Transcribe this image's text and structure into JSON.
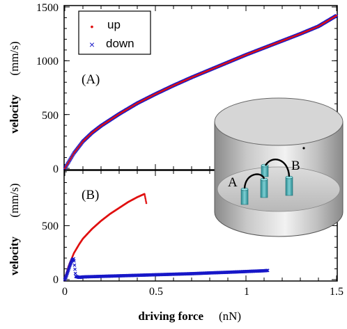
{
  "chart_data": [
    {
      "type": "scatter",
      "panel_label": "(A)",
      "ylabel": "velocity",
      "ylabel_unit": "(mm/s)",
      "xlim": [
        0,
        1.5
      ],
      "ylim": [
        0,
        1500
      ],
      "y_ticks": [
        "0",
        "500",
        "1000",
        "1500"
      ],
      "legend": {
        "position": "top-left",
        "entries": [
          {
            "marker": "•",
            "label": "up",
            "color": "#e01010"
          },
          {
            "marker": "×",
            "label": "down",
            "color": "#1818c8"
          }
        ]
      },
      "series": [
        {
          "name": "down",
          "color": "#1818c8",
          "x": [
            0,
            0.02,
            0.05,
            0.1,
            0.15,
            0.2,
            0.3,
            0.4,
            0.5,
            0.6,
            0.7,
            0.8,
            0.9,
            1.0,
            1.1,
            1.2,
            1.3,
            1.4,
            1.5
          ],
          "y": [
            0,
            55,
            140,
            250,
            330,
            395,
            505,
            605,
            690,
            770,
            845,
            915,
            985,
            1055,
            1120,
            1185,
            1250,
            1320,
            1420
          ]
        },
        {
          "name": "up",
          "color": "#e01010",
          "x": [
            0,
            0.02,
            0.05,
            0.1,
            0.15,
            0.2,
            0.3,
            0.4,
            0.5,
            0.6,
            0.7,
            0.8,
            0.9,
            1.0,
            1.1,
            1.2,
            1.3,
            1.4,
            1.5
          ],
          "y": [
            0,
            55,
            140,
            250,
            330,
            395,
            505,
            605,
            690,
            770,
            845,
            915,
            985,
            1055,
            1120,
            1185,
            1250,
            1320,
            1420
          ]
        }
      ]
    },
    {
      "type": "scatter",
      "panel_label": "(B)",
      "ylabel": "velocity",
      "ylabel_unit": "(mm/s)",
      "xlabel": "driving  force",
      "xlabel_unit": "(nN)",
      "xlim": [
        0,
        1.5
      ],
      "ylim": [
        0,
        1000
      ],
      "x_ticks": [
        "0",
        "0.5",
        "1",
        "1.5"
      ],
      "y_ticks": [
        "0",
        "500"
      ],
      "series": [
        {
          "name": "up",
          "color": "#e01010",
          "x": [
            0,
            0.02,
            0.05,
            0.08,
            0.1,
            0.15,
            0.2,
            0.25,
            0.3,
            0.35,
            0.4,
            0.44,
            0.45
          ],
          "y": [
            0,
            120,
            245,
            330,
            380,
            470,
            545,
            610,
            665,
            720,
            765,
            795,
            710
          ]
        },
        {
          "name": "down",
          "color": "#1818c8",
          "x": [
            0,
            0.01,
            0.02,
            0.03,
            0.04,
            0.05,
            0.06,
            0.08,
            0.1,
            0.2,
            0.3,
            0.4,
            0.5,
            0.6,
            0.7,
            0.8,
            0.9,
            1.0,
            1.1,
            1.12
          ],
          "y": [
            0,
            40,
            90,
            140,
            180,
            195,
            30,
            20,
            25,
            30,
            35,
            40,
            45,
            50,
            55,
            62,
            68,
            75,
            82,
            85
          ]
        }
      ]
    }
  ],
  "inset": {
    "label_a": "A",
    "label_b": "B"
  }
}
